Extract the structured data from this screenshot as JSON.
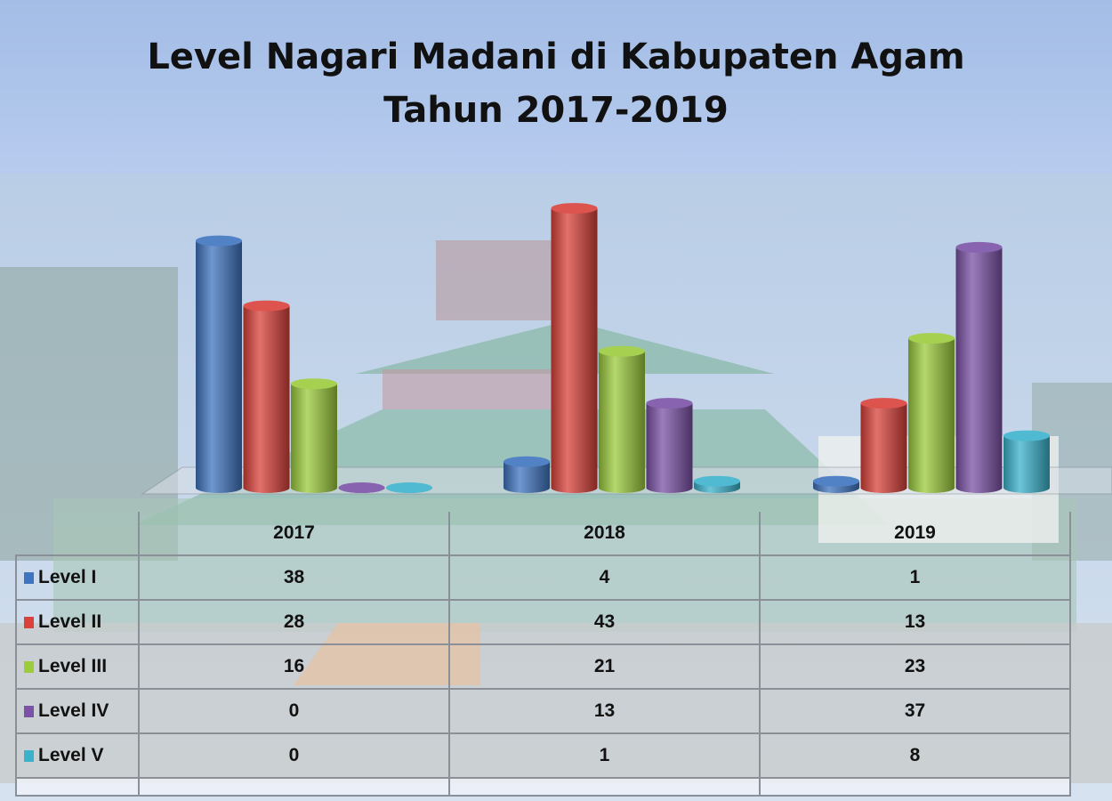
{
  "chart_data": {
    "type": "bar",
    "title": "Level Nagari Madani di Kabupaten Agam",
    "subtitle": "Tahun 2017-2019",
    "categories": [
      "2017",
      "2018",
      "2019"
    ],
    "series": [
      {
        "name": "Level I",
        "color": "#3f74c0",
        "values": [
          38,
          4,
          1
        ]
      },
      {
        "name": "Level II",
        "color": "#d9413a",
        "values": [
          28,
          43,
          13
        ]
      },
      {
        "name": "Level III",
        "color": "#9ccb3c",
        "values": [
          16,
          21,
          23
        ]
      },
      {
        "name": "Level IV",
        "color": "#7b52a6",
        "values": [
          0,
          13,
          37
        ]
      },
      {
        "name": "Level V",
        "color": "#3bb2cc",
        "values": [
          0,
          1,
          8
        ]
      }
    ],
    "style": "3d-cylinder",
    "data_table": true,
    "ylim": [
      0,
      43
    ]
  }
}
